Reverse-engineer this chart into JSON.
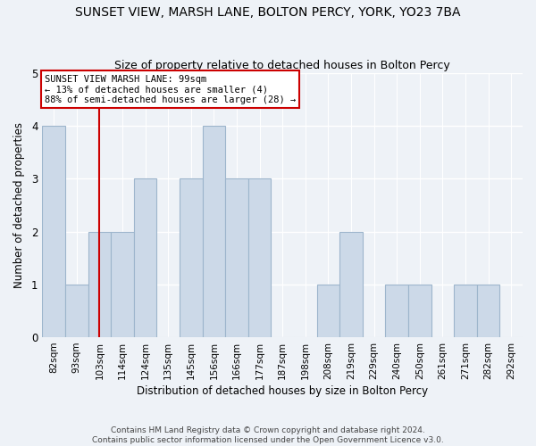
{
  "title": "SUNSET VIEW, MARSH LANE, BOLTON PERCY, YORK, YO23 7BA",
  "subtitle": "Size of property relative to detached houses in Bolton Percy",
  "xlabel": "Distribution of detached houses by size in Bolton Percy",
  "ylabel": "Number of detached properties",
  "categories": [
    "82sqm",
    "93sqm",
    "103sqm",
    "114sqm",
    "124sqm",
    "135sqm",
    "145sqm",
    "156sqm",
    "166sqm",
    "177sqm",
    "187sqm",
    "198sqm",
    "208sqm",
    "219sqm",
    "229sqm",
    "240sqm",
    "250sqm",
    "261sqm",
    "271sqm",
    "282sqm",
    "292sqm"
  ],
  "bar_values": [
    4,
    1,
    2,
    2,
    3,
    0,
    3,
    4,
    3,
    3,
    0,
    0,
    1,
    2,
    0,
    1,
    1,
    0,
    1,
    1,
    0
  ],
  "bar_color": "#ccd9e8",
  "bar_edgecolor": "#9db5cc",
  "vline_color": "#cc0000",
  "vline_x": 2.0,
  "ylim": [
    0,
    5
  ],
  "yticks": [
    0,
    1,
    2,
    3,
    4,
    5
  ],
  "annotation_title": "SUNSET VIEW MARSH LANE: 99sqm",
  "annotation_line1": "← 13% of detached houses are smaller (4)",
  "annotation_line2": "88% of semi-detached houses are larger (28) →",
  "annotation_box_color": "#cc0000",
  "footer_line1": "Contains HM Land Registry data © Crown copyright and database right 2024.",
  "footer_line2": "Contains public sector information licensed under the Open Government Licence v3.0.",
  "background_color": "#eef2f7",
  "plot_bg_color": "#eef2f7",
  "title_fontsize": 10,
  "subtitle_fontsize": 9,
  "tick_fontsize": 7.5
}
